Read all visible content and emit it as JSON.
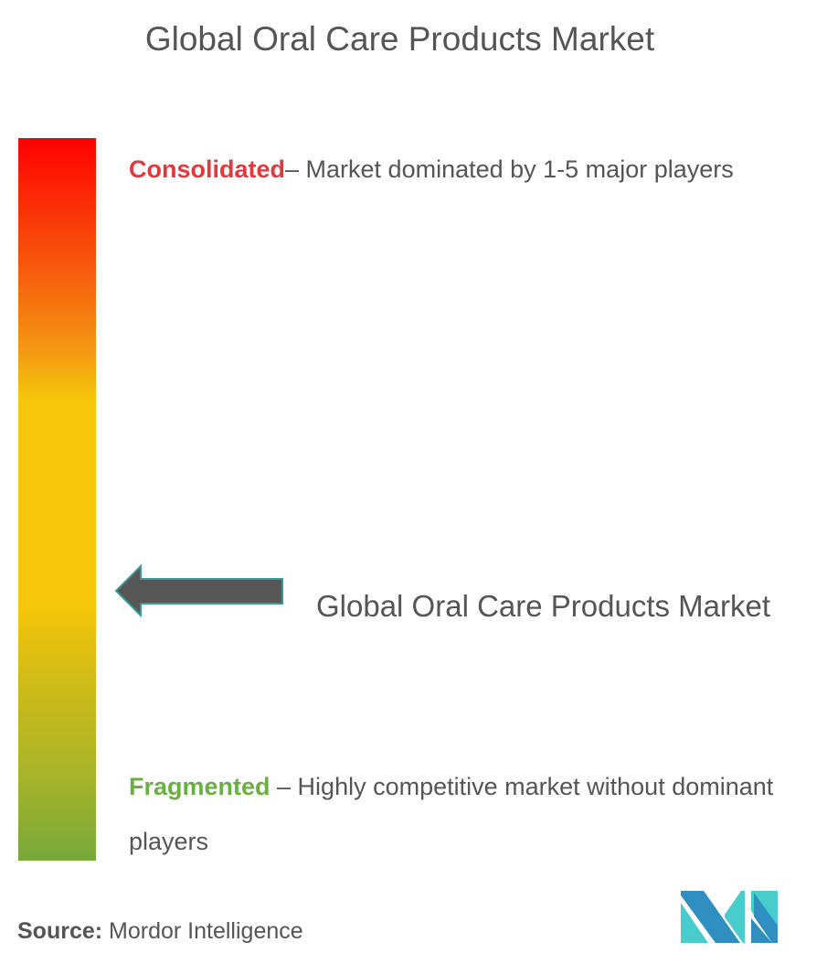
{
  "title": "Global Oral Care Products Market",
  "scale": {
    "top_color": "#ff0000",
    "middle_color": "#f5c60a",
    "bottom_color": "#77a83a"
  },
  "consolidated": {
    "label": "Consolidated",
    "text": "– Market dominated by 1-5 major players",
    "color": "#e0393e"
  },
  "fragmented": {
    "label": "Fragmented",
    "text": " – Highly competitive market without dominant players",
    "color": "#6ab041"
  },
  "marker": {
    "label": "Global Oral Care Products Market",
    "icon": "arrow-left-icon"
  },
  "source": {
    "label": "Source:",
    "text": " Mordor Intelligence"
  },
  "logo": {
    "name": "Mordor Intelligence logo",
    "colors": [
      "#2e8fc0",
      "#48cccd"
    ]
  }
}
